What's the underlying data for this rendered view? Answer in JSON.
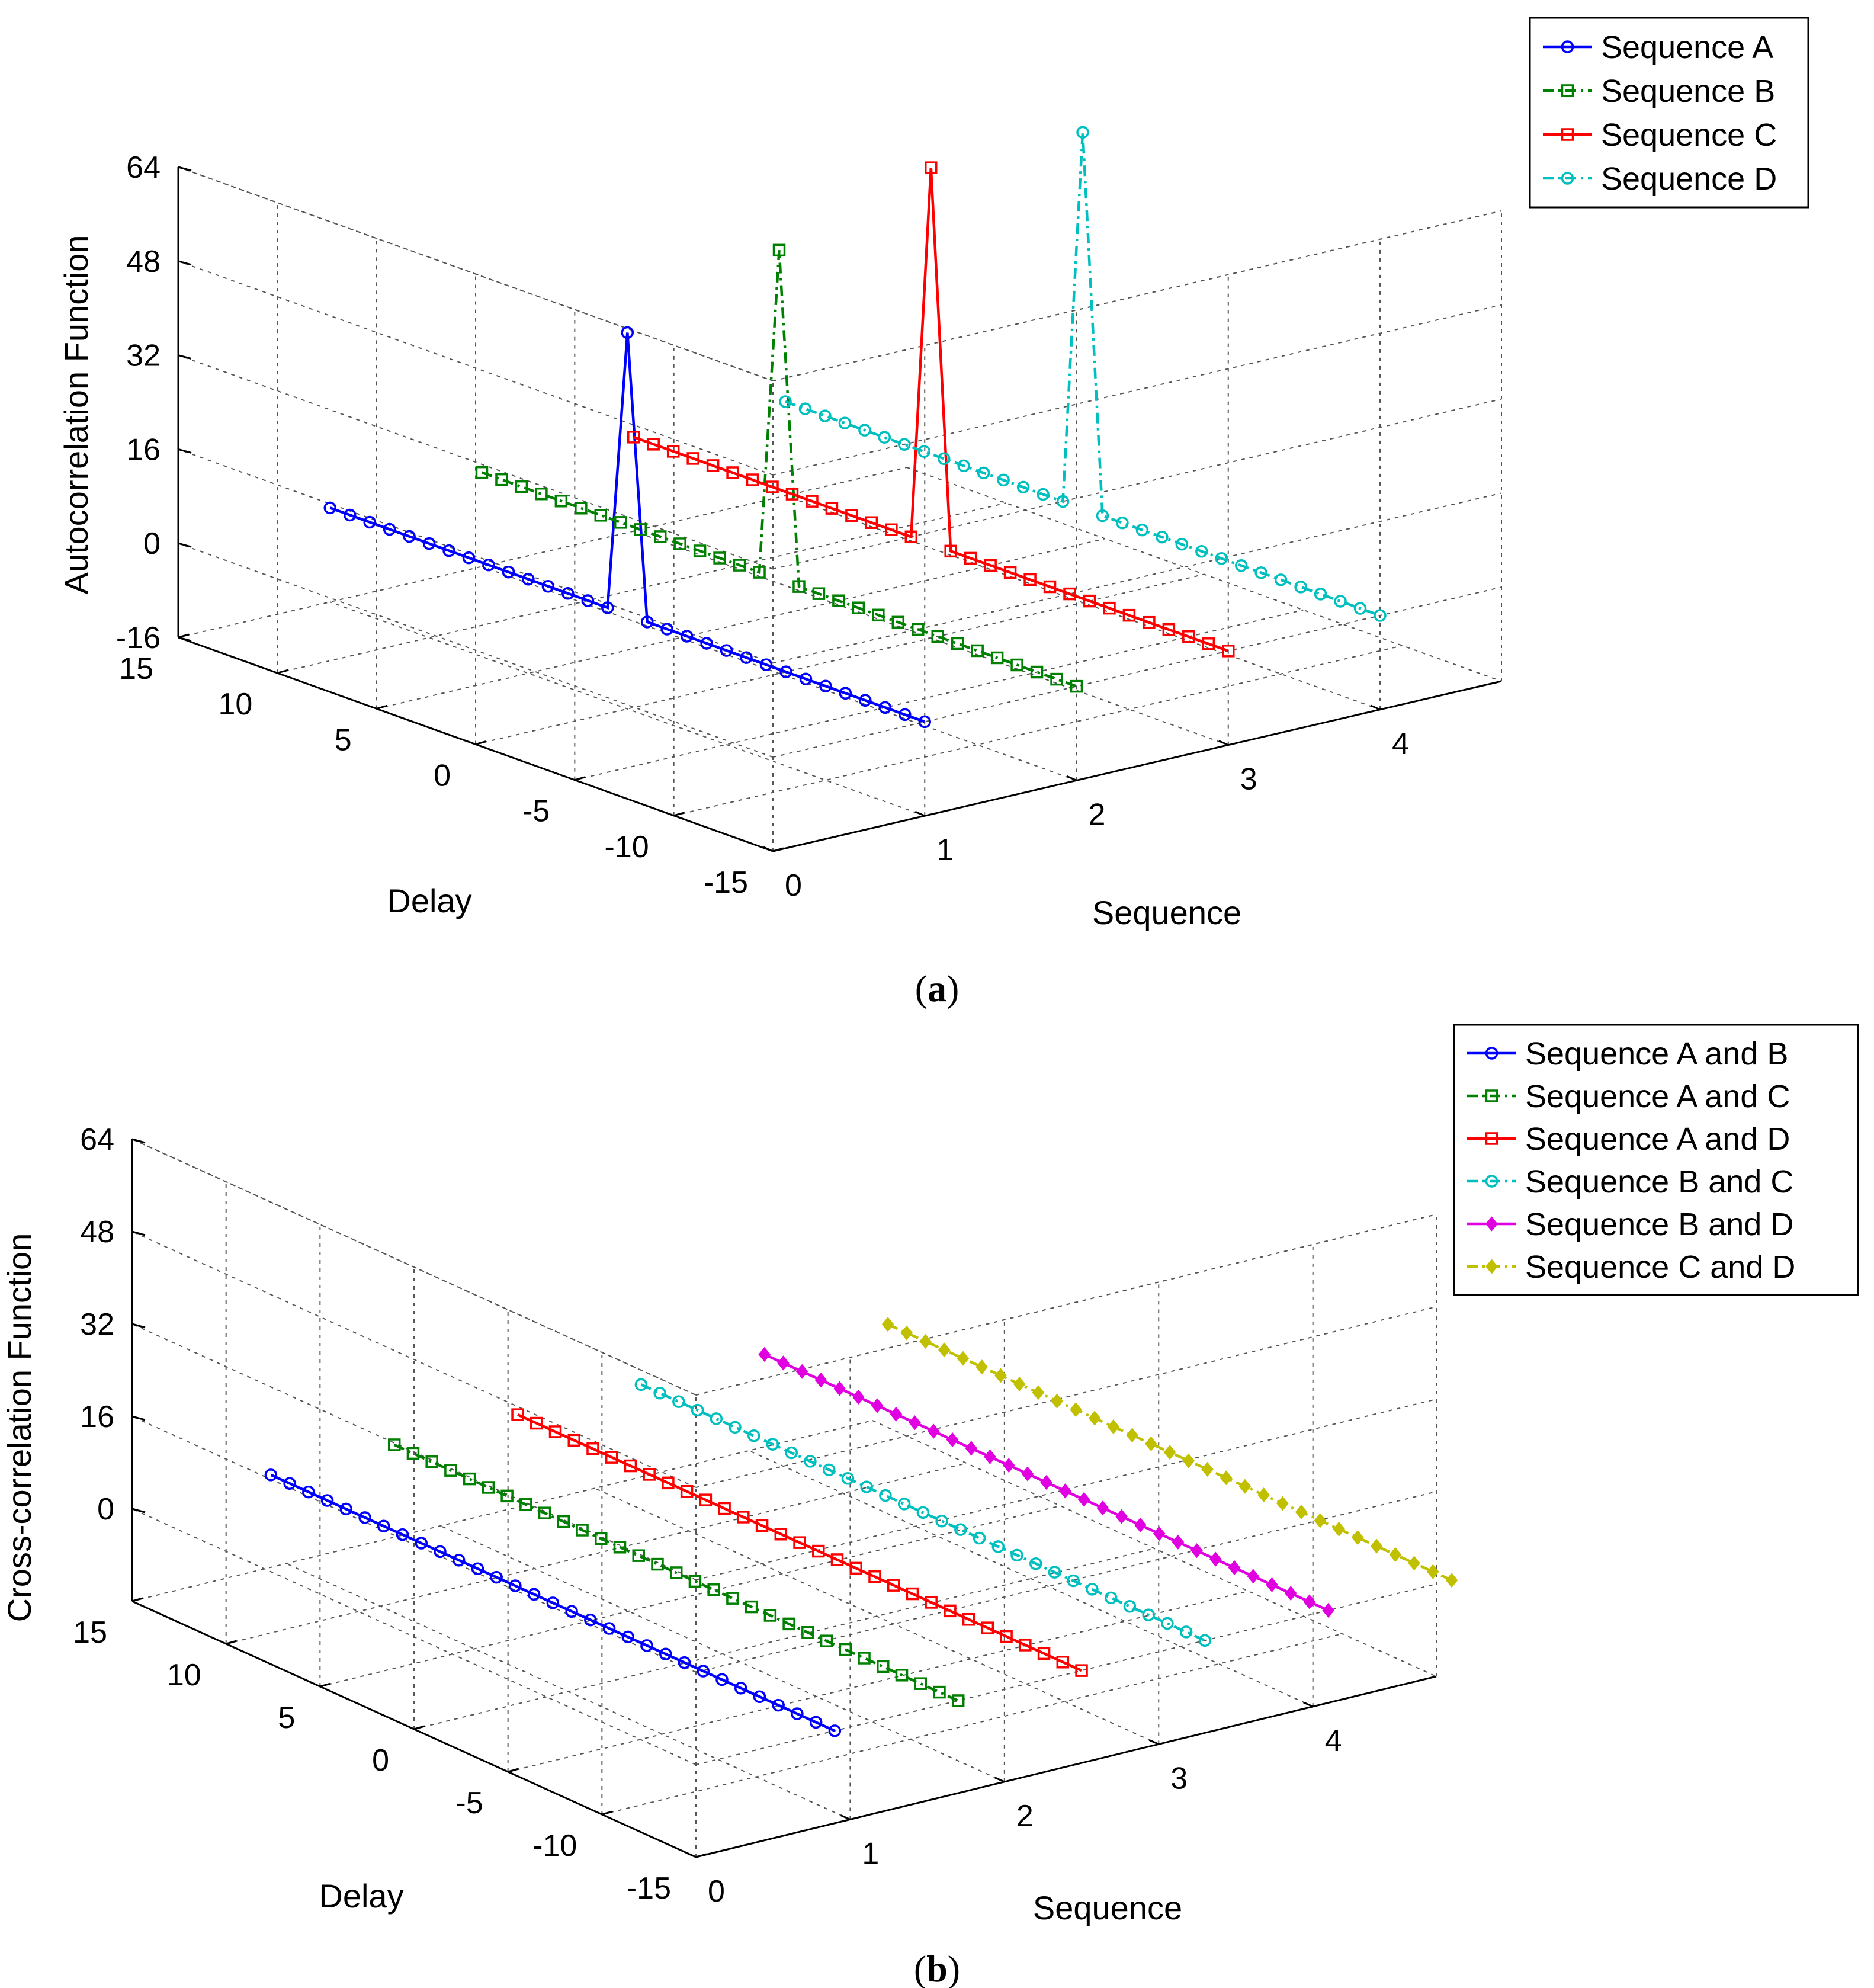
{
  "chart_data": [
    {
      "type": "line",
      "panel_label": "a",
      "zlabel": "Autocorrelation Function",
      "xlabel": "Delay",
      "ylabel": "Sequence",
      "delay_ticks": [
        "15",
        "10",
        "5",
        "0",
        "-5",
        "-10",
        "-15"
      ],
      "sequence_ticks": [
        "0",
        "1",
        "2",
        "3",
        "4"
      ],
      "z_ticks": [
        "64",
        "48",
        "32",
        "16",
        "0",
        "-16"
      ],
      "zlim": [
        -16,
        64
      ],
      "delay_range": [
        -15,
        15
      ],
      "sequence_range": [
        0,
        4.8
      ],
      "series": [
        {
          "name": "Sequence A",
          "sequence": 1,
          "peak": 48,
          "baseline": 0,
          "color": "#0000ff",
          "marker": "circle",
          "dash": "solid"
        },
        {
          "name": "Sequence B",
          "sequence": 2,
          "peak": 56,
          "baseline": 0,
          "color": "#008000",
          "marker": "square",
          "dash": "dashdot"
        },
        {
          "name": "Sequence C",
          "sequence": 3,
          "peak": 64,
          "baseline": 0,
          "color": "#ff0000",
          "marker": "square",
          "dash": "solid"
        },
        {
          "name": "Sequence D",
          "sequence": 4,
          "peak": 64,
          "baseline": 0,
          "color": "#00bfbf",
          "marker": "circle",
          "dash": "dashdot"
        }
      ]
    },
    {
      "type": "line",
      "panel_label": "b",
      "zlabel": "Cross-correlation Function",
      "xlabel": "Delay",
      "ylabel": "Sequence",
      "delay_ticks": [
        "15",
        "10",
        "5",
        "0",
        "-5",
        "-10",
        "-15"
      ],
      "sequence_ticks": [
        "0",
        "1",
        "2",
        "3",
        "4"
      ],
      "z_ticks": [
        "64",
        "48",
        "32",
        "16",
        "0"
      ],
      "zlim": [
        -16,
        64
      ],
      "delay_range": [
        -15,
        15
      ],
      "sequence_range": [
        0,
        4.8
      ],
      "series": [
        {
          "name": "Sequence A and B",
          "sequence": 0.9,
          "baseline": 0,
          "color": "#0000ff",
          "marker": "circle",
          "dash": "solid"
        },
        {
          "name": "Sequence A and C",
          "sequence": 1.7,
          "baseline": 0,
          "color": "#008000",
          "marker": "square",
          "dash": "dashdot"
        },
        {
          "name": "Sequence A and D",
          "sequence": 2.5,
          "baseline": 0,
          "color": "#ff0000",
          "marker": "square",
          "dash": "solid"
        },
        {
          "name": "Sequence B and C",
          "sequence": 3.3,
          "baseline": 0,
          "color": "#00bfbf",
          "marker": "circle",
          "dash": "dashdot"
        },
        {
          "name": "Sequence B and D",
          "sequence": 4.1,
          "baseline": 0,
          "color": "#e000e0",
          "marker": "diamond",
          "dash": "solid"
        },
        {
          "name": "Sequence C and D",
          "sequence": 4.9,
          "baseline": 0,
          "color": "#c0c000",
          "marker": "diamond",
          "dash": "dashdot"
        }
      ]
    }
  ]
}
